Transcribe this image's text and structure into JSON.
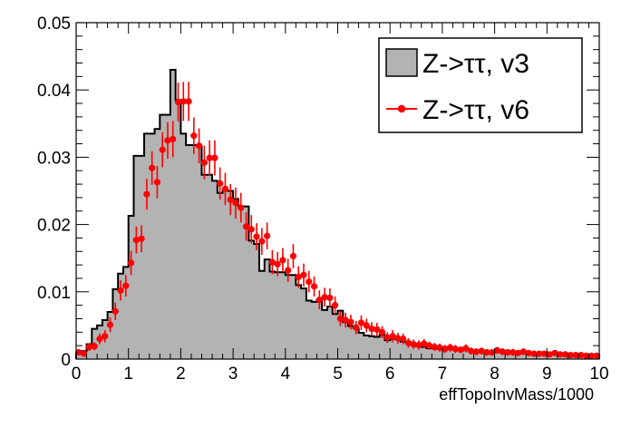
{
  "chart_data": {
    "type": "bar",
    "xlabel": "effTopoInvMass/1000",
    "ylabel": "",
    "xlim": [
      0,
      10
    ],
    "ylim": [
      0,
      0.05
    ],
    "grid": false,
    "legend_position": "top-right",
    "x_ticks": [
      "0",
      "1",
      "2",
      "3",
      "4",
      "5",
      "6",
      "7",
      "8",
      "9",
      "10"
    ],
    "y_ticks": [
      "0",
      "0.01",
      "0.02",
      "0.03",
      "0.04",
      "0.05"
    ],
    "bin_width": 0.1,
    "series": [
      {
        "name": "Z->ττ, v3",
        "style": "filled-histogram",
        "fill_color": "#b3b3b3",
        "line_color": "#000000",
        "x": [
          0.05,
          0.15,
          0.25,
          0.35,
          0.45,
          0.55,
          0.65,
          0.75,
          0.85,
          0.95,
          1.05,
          1.15,
          1.25,
          1.35,
          1.45,
          1.55,
          1.65,
          1.75,
          1.85,
          1.95,
          2.05,
          2.15,
          2.25,
          2.35,
          2.45,
          2.55,
          2.65,
          2.75,
          2.85,
          2.95,
          3.05,
          3.15,
          3.25,
          3.35,
          3.45,
          3.55,
          3.65,
          3.75,
          3.85,
          3.95,
          4.05,
          4.15,
          4.25,
          4.35,
          4.45,
          4.55,
          4.65,
          4.75,
          4.85,
          4.95,
          5.05,
          5.15,
          5.25,
          5.35,
          5.45,
          5.55,
          5.65,
          5.75,
          5.85,
          5.95,
          6.05,
          6.15,
          6.25,
          6.35,
          6.45,
          6.55,
          6.65,
          6.75,
          6.85,
          6.95,
          7.05,
          7.15,
          7.25,
          7.35,
          7.45,
          7.55,
          7.65,
          7.75,
          7.85,
          7.95,
          8.05,
          8.15,
          8.25,
          8.35,
          8.45,
          8.55,
          8.65,
          8.75,
          8.85,
          8.95,
          9.05,
          9.15,
          9.25,
          9.35,
          9.45,
          9.55,
          9.65,
          9.75,
          9.85,
          9.95
        ],
        "values": [
          0.001,
          0.0012,
          0.0022,
          0.0045,
          0.005,
          0.0058,
          0.007,
          0.0104,
          0.0127,
          0.0137,
          0.0213,
          0.0302,
          0.0302,
          0.0335,
          0.0335,
          0.0342,
          0.0363,
          0.0363,
          0.043,
          0.0385,
          0.0335,
          0.0318,
          0.0318,
          0.0317,
          0.0274,
          0.0274,
          0.0265,
          0.0247,
          0.025,
          0.025,
          0.0238,
          0.0227,
          0.0227,
          0.0176,
          0.0171,
          0.0131,
          0.0148,
          0.013,
          0.0129,
          0.0129,
          0.0125,
          0.0125,
          0.011,
          0.0105,
          0.0087,
          0.0085,
          0.0088,
          0.0073,
          0.0078,
          0.0067,
          0.0072,
          0.0055,
          0.0049,
          0.0046,
          0.0039,
          0.0035,
          0.0034,
          0.0033,
          0.0036,
          0.0028,
          0.003,
          0.003,
          0.0026,
          0.0025,
          0.0021,
          0.0019,
          0.0018,
          0.0016,
          0.0017,
          0.0015,
          0.0018,
          0.0016,
          0.0015,
          0.0013,
          0.0014,
          0.0012,
          0.0012,
          0.0011,
          0.0011,
          0.001,
          0.0011,
          0.001,
          0.001,
          0.0009,
          0.0009,
          0.0009,
          0.0008,
          0.0008,
          0.0008,
          0.0008,
          0.0008,
          0.0008,
          0.0007,
          0.0007,
          0.0007,
          0.0006,
          0.0006,
          0.0006,
          0.0006,
          0.0006
        ]
      },
      {
        "name": "Z->ττ, v6",
        "style": "points-with-error-bars",
        "color": "#ff0000",
        "x": [
          0.05,
          0.15,
          0.25,
          0.35,
          0.45,
          0.55,
          0.65,
          0.75,
          0.85,
          0.95,
          1.05,
          1.15,
          1.25,
          1.35,
          1.45,
          1.55,
          1.65,
          1.75,
          1.85,
          1.95,
          2.05,
          2.15,
          2.25,
          2.35,
          2.45,
          2.55,
          2.65,
          2.75,
          2.85,
          2.95,
          3.05,
          3.15,
          3.25,
          3.35,
          3.45,
          3.55,
          3.65,
          3.75,
          3.85,
          3.95,
          4.05,
          4.15,
          4.25,
          4.35,
          4.45,
          4.55,
          4.65,
          4.75,
          4.85,
          4.95,
          5.05,
          5.15,
          5.25,
          5.35,
          5.45,
          5.55,
          5.65,
          5.75,
          5.85,
          5.95,
          6.05,
          6.15,
          6.25,
          6.35,
          6.45,
          6.55,
          6.65,
          6.75,
          6.85,
          6.95,
          7.05,
          7.15,
          7.25,
          7.35,
          7.45,
          7.55,
          7.65,
          7.75,
          7.85,
          7.95,
          8.05,
          8.15,
          8.25,
          8.35,
          8.45,
          8.55,
          8.65,
          8.75,
          8.85,
          8.95,
          9.05,
          9.15,
          9.25,
          9.35,
          9.45,
          9.55,
          9.65,
          9.75,
          9.85,
          9.95
        ],
        "values": [
          0.001,
          0.0008,
          0.0018,
          0.0019,
          0.003,
          0.0034,
          0.0051,
          0.0071,
          0.0102,
          0.0109,
          0.0143,
          0.0177,
          0.0179,
          0.0245,
          0.0284,
          0.0263,
          0.0311,
          0.0325,
          0.0327,
          0.0382,
          0.0383,
          0.0383,
          0.0332,
          0.0317,
          0.0292,
          0.0299,
          0.0299,
          0.0261,
          0.0253,
          0.0237,
          0.0232,
          0.0225,
          0.0197,
          0.0193,
          0.0182,
          0.0175,
          0.0183,
          0.0144,
          0.0141,
          0.0147,
          0.0132,
          0.0153,
          0.0122,
          0.0125,
          0.0115,
          0.0108,
          0.0088,
          0.0092,
          0.0091,
          0.008,
          0.006,
          0.0058,
          0.0055,
          0.0047,
          0.0054,
          0.005,
          0.0045,
          0.0044,
          0.004,
          0.0032,
          0.0034,
          0.0031,
          0.003,
          0.0024,
          0.0022,
          0.0021,
          0.0023,
          0.002,
          0.0018,
          0.0017,
          0.0015,
          0.0017,
          0.0015,
          0.0014,
          0.0016,
          0.0012,
          0.0011,
          0.0012,
          0.001,
          0.001,
          0.0013,
          0.0011,
          0.001,
          0.001,
          0.0009,
          0.0011,
          0.0009,
          0.0008,
          0.0008,
          0.0008,
          0.0007,
          0.0009,
          0.0007,
          0.0007,
          0.0006,
          0.0006,
          0.0006,
          0.0005,
          0.0005,
          0.0005
        ],
        "errors": [
          0.0004,
          0.0004,
          0.0006,
          0.0006,
          0.0008,
          0.0009,
          0.0011,
          0.0013,
          0.0015,
          0.0016,
          0.0018,
          0.002,
          0.002,
          0.0023,
          0.0025,
          0.0024,
          0.0026,
          0.0027,
          0.0027,
          0.0029,
          0.0029,
          0.0029,
          0.0027,
          0.0026,
          0.0025,
          0.0026,
          0.0026,
          0.0024,
          0.0024,
          0.0023,
          0.0023,
          0.0022,
          0.0021,
          0.0021,
          0.002,
          0.002,
          0.002,
          0.0018,
          0.0018,
          0.0018,
          0.0017,
          0.0018,
          0.0016,
          0.0017,
          0.0016,
          0.0015,
          0.0014,
          0.0014,
          0.0014,
          0.0013,
          0.0011,
          0.0011,
          0.0011,
          0.001,
          0.0011,
          0.001,
          0.001,
          0.001,
          0.0009,
          0.0008,
          0.0009,
          0.0008,
          0.0008,
          0.0007,
          0.0007,
          0.0007,
          0.0007,
          0.0006,
          0.0006,
          0.0006,
          0.0006,
          0.0006,
          0.0006,
          0.0005,
          0.0006,
          0.0005,
          0.0005,
          0.0005,
          0.0005,
          0.0005,
          0.0005,
          0.0005,
          0.0005,
          0.0005,
          0.0004,
          0.0005,
          0.0004,
          0.0004,
          0.0004,
          0.0004,
          0.0004,
          0.0004,
          0.0004,
          0.0004,
          0.0004,
          0.0004,
          0.0004,
          0.0003,
          0.0003,
          0.0003
        ]
      }
    ]
  }
}
